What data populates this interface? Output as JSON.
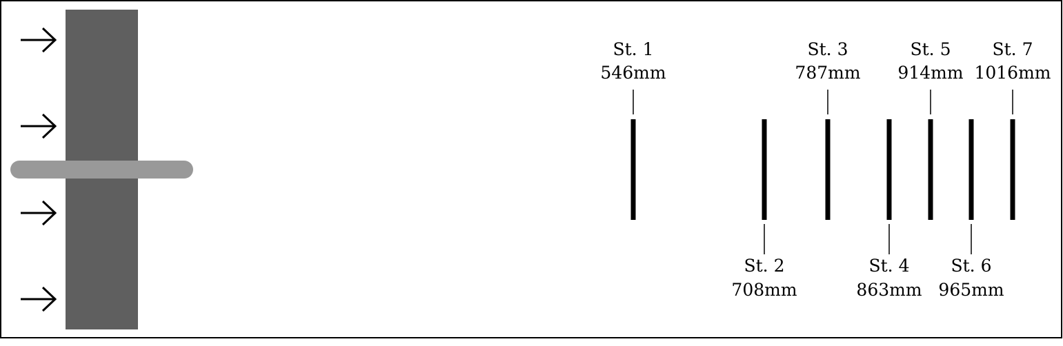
{
  "stations": [
    {
      "id": "st1",
      "name": "St. 1",
      "distance": "546mm",
      "distance_mm": 546,
      "label_side": "top"
    },
    {
      "id": "st2",
      "name": "St. 2",
      "distance": "708mm",
      "distance_mm": 708,
      "label_side": "bottom"
    },
    {
      "id": "st3",
      "name": "St. 3",
      "distance": "787mm",
      "distance_mm": 787,
      "label_side": "top"
    },
    {
      "id": "st4",
      "name": "St. 4",
      "distance": "863mm",
      "distance_mm": 863,
      "label_side": "bottom"
    },
    {
      "id": "st5",
      "name": "St. 5",
      "distance": "914mm",
      "distance_mm": 914,
      "label_side": "top"
    },
    {
      "id": "st6",
      "name": "St. 6",
      "distance": "965mm",
      "distance_mm": 965,
      "label_side": "bottom"
    },
    {
      "id": "st7",
      "name": "St. 7",
      "distance": "1016mm",
      "distance_mm": 1016,
      "label_side": "top"
    }
  ],
  "flow_arrows": 4,
  "colors": {
    "wall": "#5f5f5f",
    "rod": "#999999",
    "station_bar": "#000000",
    "frame": "#000000"
  }
}
